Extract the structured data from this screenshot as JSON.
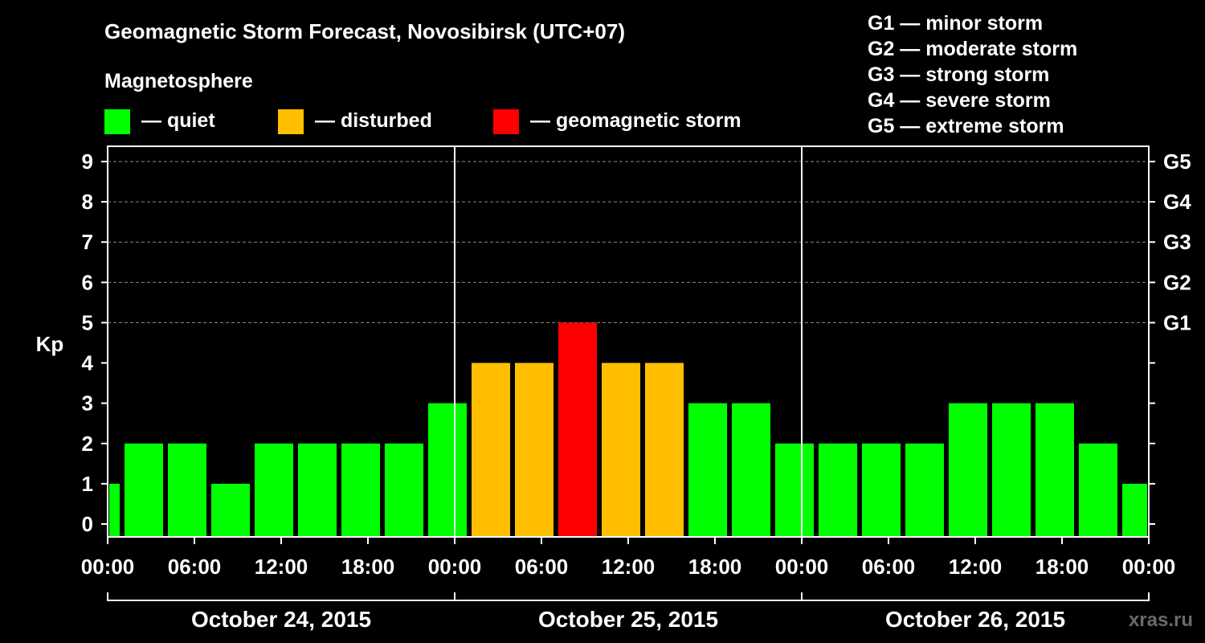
{
  "chart_data": {
    "type": "bar",
    "title": "Geomagnetic Storm Forecast, Novosibirsk (UTC+07)",
    "legend_title": "Magnetosphere",
    "legend": [
      {
        "label": "— quiet",
        "color": "#00ff00"
      },
      {
        "label": "— disturbed",
        "color": "#ffbf00"
      },
      {
        "label": "— geomagnetic storm",
        "color": "#ff0000"
      }
    ],
    "storm_scale": [
      "G1 — minor storm",
      "G2 — moderate storm",
      "G3 — strong storm",
      "G4 — severe storm",
      "G5 — extreme storm"
    ],
    "ylabel": "Kp",
    "ylim": [
      0,
      9
    ],
    "yticks": [
      "0",
      "1",
      "2",
      "3",
      "4",
      "5",
      "6",
      "7",
      "8",
      "9"
    ],
    "right_ticks": [
      {
        "value": 5,
        "label": "G1"
      },
      {
        "value": 6,
        "label": "G2"
      },
      {
        "value": 7,
        "label": "G3"
      },
      {
        "value": 8,
        "label": "G4"
      },
      {
        "value": 9,
        "label": "G5"
      }
    ],
    "x_range_hours": [
      0,
      72
    ],
    "xticks": [
      {
        "hour": 0,
        "label": "00:00"
      },
      {
        "hour": 6,
        "label": "06:00"
      },
      {
        "hour": 12,
        "label": "12:00"
      },
      {
        "hour": 18,
        "label": "18:00"
      },
      {
        "hour": 24,
        "label": "00:00"
      },
      {
        "hour": 30,
        "label": "06:00"
      },
      {
        "hour": 36,
        "label": "12:00"
      },
      {
        "hour": 42,
        "label": "18:00"
      },
      {
        "hour": 48,
        "label": "00:00"
      },
      {
        "hour": 54,
        "label": "06:00"
      },
      {
        "hour": 60,
        "label": "12:00"
      },
      {
        "hour": 66,
        "label": "18:00"
      },
      {
        "hour": 72,
        "label": "00:00"
      }
    ],
    "days": [
      "October 24, 2015",
      "October 25, 2015",
      "October 26, 2015"
    ],
    "bars": [
      {
        "start": 0,
        "end": 1,
        "kp": 1,
        "color": "#00ff00"
      },
      {
        "start": 1,
        "end": 4,
        "kp": 2,
        "color": "#00ff00"
      },
      {
        "start": 4,
        "end": 7,
        "kp": 2,
        "color": "#00ff00"
      },
      {
        "start": 7,
        "end": 10,
        "kp": 1,
        "color": "#00ff00"
      },
      {
        "start": 10,
        "end": 13,
        "kp": 2,
        "color": "#00ff00"
      },
      {
        "start": 13,
        "end": 16,
        "kp": 2,
        "color": "#00ff00"
      },
      {
        "start": 16,
        "end": 19,
        "kp": 2,
        "color": "#00ff00"
      },
      {
        "start": 19,
        "end": 22,
        "kp": 2,
        "color": "#00ff00"
      },
      {
        "start": 22,
        "end": 25,
        "kp": 3,
        "color": "#00ff00"
      },
      {
        "start": 25,
        "end": 28,
        "kp": 4,
        "color": "#ffbf00"
      },
      {
        "start": 28,
        "end": 31,
        "kp": 4,
        "color": "#ffbf00"
      },
      {
        "start": 31,
        "end": 34,
        "kp": 5,
        "color": "#ff0000"
      },
      {
        "start": 34,
        "end": 37,
        "kp": 4,
        "color": "#ffbf00"
      },
      {
        "start": 37,
        "end": 40,
        "kp": 4,
        "color": "#ffbf00"
      },
      {
        "start": 40,
        "end": 43,
        "kp": 3,
        "color": "#00ff00"
      },
      {
        "start": 43,
        "end": 46,
        "kp": 3,
        "color": "#00ff00"
      },
      {
        "start": 46,
        "end": 49,
        "kp": 2,
        "color": "#00ff00"
      },
      {
        "start": 49,
        "end": 52,
        "kp": 2,
        "color": "#00ff00"
      },
      {
        "start": 52,
        "end": 55,
        "kp": 2,
        "color": "#00ff00"
      },
      {
        "start": 55,
        "end": 58,
        "kp": 2,
        "color": "#00ff00"
      },
      {
        "start": 58,
        "end": 61,
        "kp": 3,
        "color": "#00ff00"
      },
      {
        "start": 61,
        "end": 64,
        "kp": 3,
        "color": "#00ff00"
      },
      {
        "start": 64,
        "end": 67,
        "kp": 3,
        "color": "#00ff00"
      },
      {
        "start": 67,
        "end": 70,
        "kp": 2,
        "color": "#00ff00"
      },
      {
        "start": 70,
        "end": 72,
        "kp": 1,
        "color": "#00ff00"
      }
    ],
    "watermark": "xras.ru"
  }
}
